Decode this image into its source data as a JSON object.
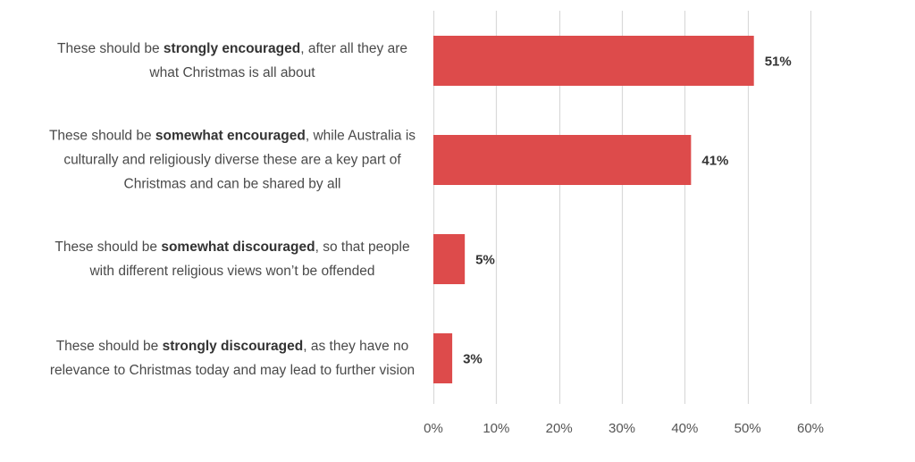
{
  "chart_data": {
    "type": "bar",
    "orientation": "horizontal",
    "categories": [
      "These should be strongly encouraged, after all they are what Christmas is all about",
      "These should be somewhat encouraged, while Australia is culturally and religiously diverse these are a key part of Christmas and can be shared by all",
      "These should be somewhat discouraged, so that people with different religious views won’t be offended",
      "These should be strongly discouraged, as they have no relevance to Christmas today and may lead to further vision"
    ],
    "category_parts": [
      {
        "pre": "These should be ",
        "bold": "strongly encouraged",
        "post": ", after all they are what Christmas is all about"
      },
      {
        "pre": "These should be ",
        "bold": "somewhat encouraged",
        "post": ", while Australia is culturally and religiously diverse these are a key part of Christmas and can be shared by all"
      },
      {
        "pre": "These should be ",
        "bold": "somewhat discouraged",
        "post": ", so that people with different religious views won’t be offended"
      },
      {
        "pre": "These should be ",
        "bold": "strongly discouraged",
        "post": ", as they have no relevance to Christmas today and may lead to further vision"
      }
    ],
    "values": [
      51,
      41,
      5,
      3
    ],
    "value_labels": [
      "51%",
      "41%",
      "5%",
      "3%"
    ],
    "xlim": [
      0,
      60
    ],
    "x_ticks": [
      0,
      10,
      20,
      30,
      40,
      50,
      60
    ],
    "x_tick_labels": [
      "0%",
      "10%",
      "20%",
      "30%",
      "40%",
      "50%",
      "60%"
    ],
    "grid": true,
    "colors": {
      "bar": "#dd4b4b",
      "grid": "#d9d9d9"
    },
    "title": "",
    "xlabel": "",
    "ylabel": ""
  }
}
